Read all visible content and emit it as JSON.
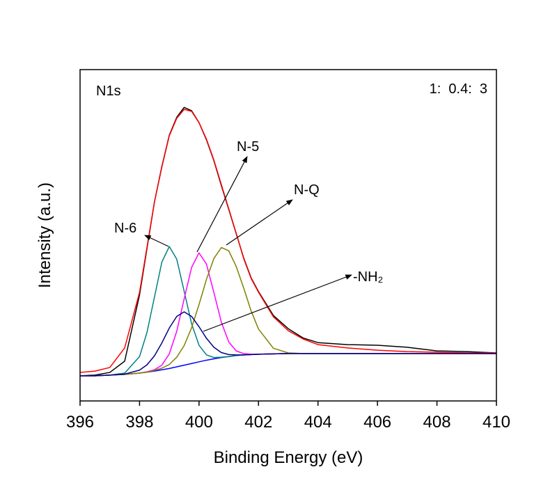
{
  "chart_data": {
    "type": "line",
    "xlabel": "Binding Energy (eV)",
    "ylabel": "Intensity (a.u.)",
    "annotations": [
      "N1s",
      "1:  0.4:  3",
      "N-6",
      "N-5",
      "N-Q",
      "-NH₂"
    ],
    "xlim": [
      396,
      410
    ],
    "xticks": [
      396,
      398,
      400,
      402,
      404,
      406,
      408,
      410
    ],
    "ylim": [
      0,
      100
    ],
    "x": [
      396,
      396.5,
      397,
      397.5,
      398,
      398.25,
      398.5,
      398.75,
      399,
      399.25,
      399.5,
      399.75,
      400,
      400.25,
      400.5,
      400.75,
      401,
      401.25,
      401.5,
      401.75,
      402,
      402.5,
      403,
      403.5,
      404,
      405,
      406,
      407,
      408,
      409,
      410
    ],
    "series": [
      {
        "color": "#000000",
        "values": [
          7.6,
          7.8,
          8.6,
          12.0,
          32.0,
          46.0,
          60.0,
          70.8,
          80.2,
          85.6,
          88.6,
          87.6,
          84.0,
          78.8,
          72.5,
          65.0,
          57.8,
          50.5,
          43.2,
          37.2,
          33.0,
          25.8,
          21.8,
          19.0,
          17.6,
          17.0,
          16.8,
          16.2,
          15.1,
          14.9,
          14.5
        ]
      },
      {
        "color": "#ff0000",
        "values": [
          8.6,
          9.0,
          10.1,
          16.0,
          32.8,
          46.4,
          60.0,
          70.6,
          80.0,
          85.3,
          88.0,
          87.4,
          84.0,
          79.0,
          72.7,
          65.3,
          58.0,
          50.6,
          43.0,
          37.0,
          32.8,
          25.4,
          21.2,
          18.7,
          17.0,
          16.0,
          15.3,
          14.9,
          14.7,
          14.5,
          14.5
        ]
      },
      {
        "color": "#0000ff",
        "values": [
          7.6,
          7.6,
          7.8,
          8.0,
          8.4,
          8.7,
          9.0,
          9.4,
          9.8,
          10.3,
          10.8,
          11.3,
          11.8,
          12.3,
          12.7,
          13.1,
          13.4,
          13.7,
          13.9,
          14.0,
          14.1,
          14.2,
          14.3,
          14.3,
          14.3,
          14.3,
          14.3,
          14.3,
          14.3,
          14.3,
          14.3
        ]
      },
      {
        "color": "#008080",
        "values": [
          7.6,
          7.6,
          7.8,
          8.4,
          13.4,
          20.7,
          31.3,
          41.9,
          46.6,
          42.8,
          33.1,
          23.3,
          16.8,
          13.9,
          13.1,
          13.2,
          13.4,
          13.7,
          13.9,
          14.0,
          14.1,
          14.2,
          14.3,
          14.3,
          14.3,
          14.3,
          14.3,
          14.3,
          14.3,
          14.3,
          14.3
        ]
      },
      {
        "color": "#ff00ff",
        "values": [
          7.6,
          7.6,
          7.8,
          8.0,
          8.4,
          8.8,
          9.4,
          10.8,
          14.2,
          21.0,
          30.8,
          40.3,
          44.7,
          41.3,
          32.7,
          23.8,
          17.8,
          15.1,
          14.3,
          14.1,
          14.1,
          14.2,
          14.3,
          14.3,
          14.3,
          14.3,
          14.3,
          14.3,
          14.3,
          14.3,
          14.3
        ]
      },
      {
        "color": "#808000",
        "values": [
          7.6,
          7.6,
          7.8,
          8.0,
          8.4,
          8.7,
          9.2,
          9.9,
          11.0,
          13.2,
          16.7,
          22.1,
          29.1,
          36.7,
          43.0,
          46.3,
          45.3,
          40.6,
          34.1,
          27.2,
          21.7,
          15.9,
          14.5,
          14.3,
          14.3,
          14.3,
          14.3,
          14.3,
          14.3,
          14.3,
          14.3
        ]
      },
      {
        "color": "#000080",
        "values": [
          7.6,
          7.6,
          7.8,
          8.1,
          9.3,
          10.9,
          13.6,
          17.5,
          22.0,
          25.5,
          26.9,
          25.5,
          22.4,
          18.9,
          16.2,
          14.6,
          14.0,
          13.9,
          13.9,
          14.0,
          14.1,
          14.2,
          14.3,
          14.3,
          14.3,
          14.3,
          14.3,
          14.3,
          14.3,
          14.3,
          14.3
        ]
      }
    ]
  }
}
